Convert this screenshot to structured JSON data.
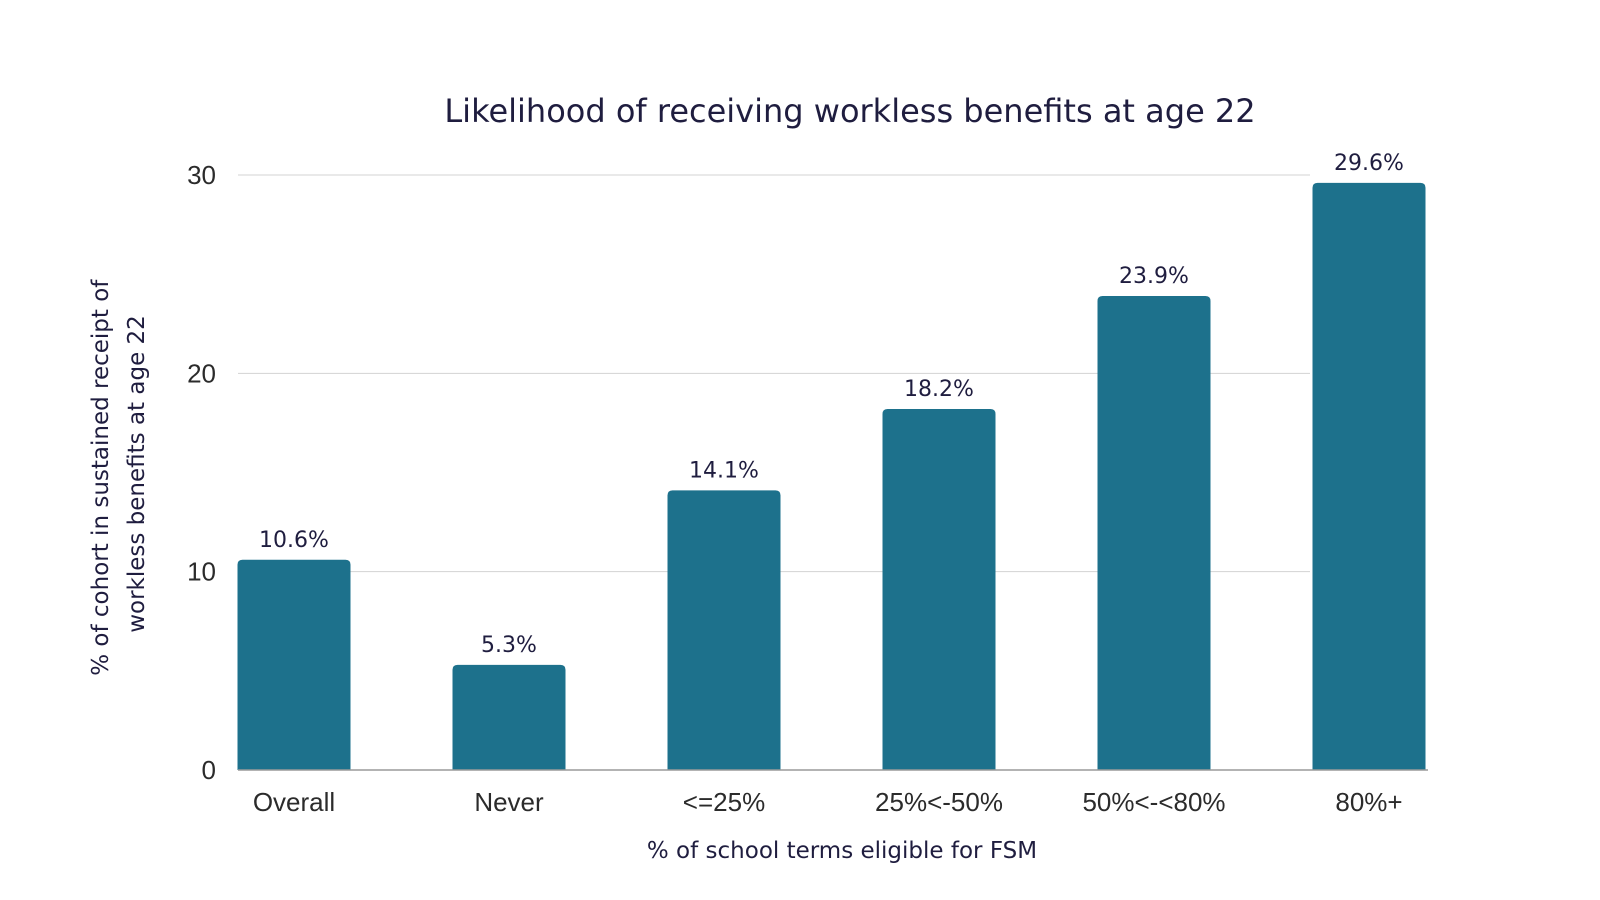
{
  "chart_data": {
    "type": "bar",
    "title": "Likelihood of receiving workless benefits at age 22",
    "xlabel": "% of school terms eligible for FSM",
    "ylabel_lines": [
      "% of cohort in sustained receipt of",
      "workless benefits at age 22"
    ],
    "categories": [
      "Overall",
      "Never",
      "<=25%",
      "25%<-50%",
      "50%<-<80%",
      "80%+"
    ],
    "values": [
      10.6,
      5.3,
      14.1,
      18.2,
      23.9,
      29.6
    ],
    "data_labels": [
      "10.6%",
      "5.3%",
      "14.1%",
      "18.2%",
      "23.9%",
      "29.6%"
    ],
    "ylim": [
      0,
      30
    ],
    "yticks": [
      0,
      10,
      20,
      30
    ],
    "grid": true,
    "legend": "none",
    "bar_color": "#1d718c"
  }
}
